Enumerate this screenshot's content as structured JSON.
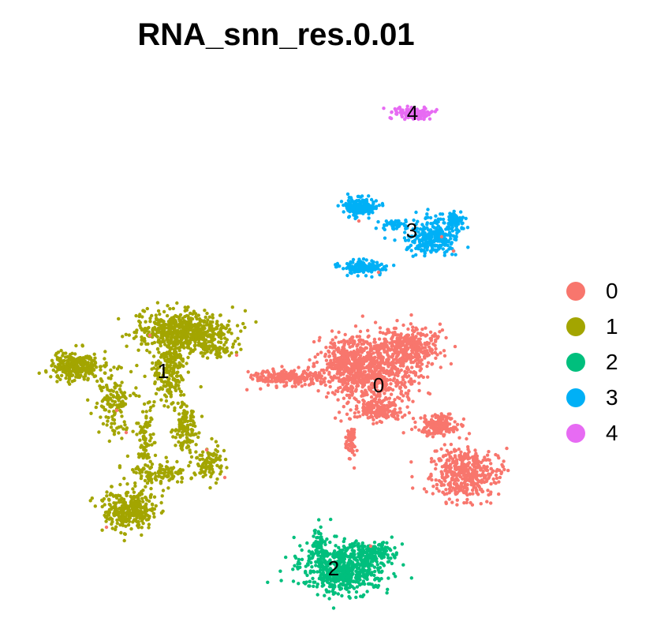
{
  "chart_data": {
    "type": "scatter",
    "title": "RNA_snn_res.0.01",
    "xlabel": "",
    "ylabel": "",
    "axes_visible": false,
    "grid": false,
    "legend_position": "right",
    "clusters": [
      {
        "name": "0",
        "label": "0",
        "color": "#F8766D"
      },
      {
        "name": "1",
        "label": "1",
        "color": "#A3A500"
      },
      {
        "name": "2",
        "label": "2",
        "color": "#00BF7D"
      },
      {
        "name": "3",
        "label": "3",
        "color": "#00B0F6"
      },
      {
        "name": "4",
        "label": "4",
        "color": "#E76BF3"
      }
    ]
  }
}
